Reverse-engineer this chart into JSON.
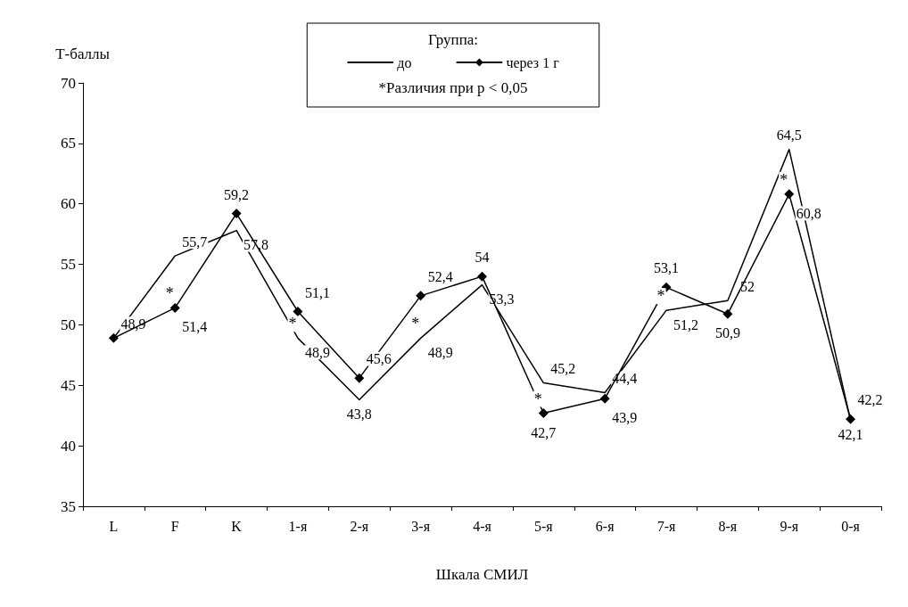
{
  "chart_data": {
    "type": "line",
    "xlabel": "Шкала СМИЛ",
    "ylabel": "Т-баллы",
    "legend_title": "Группа:",
    "legend": "top",
    "grid": false,
    "categories": [
      "L",
      "F",
      "K",
      "1-я",
      "2-я",
      "3-я",
      "4-я",
      "5-я",
      "6-я",
      "7-я",
      "8-я",
      "9-я",
      "0-я"
    ],
    "ylim": [
      35,
      70
    ],
    "yticks": [
      35,
      40,
      45,
      50,
      55,
      60,
      65,
      70
    ],
    "series": [
      {
        "name": "до",
        "color": "#000000",
        "marker": "none",
        "values": [
          48.9,
          55.7,
          57.8,
          48.9,
          43.8,
          48.9,
          53.3,
          45.2,
          44.4,
          51.2,
          52,
          64.5,
          42.1
        ],
        "value_labels": [
          "48,9",
          "55,7",
          "57,8",
          "48,9",
          "43,8",
          "48,9",
          "53,3",
          "45,2",
          "44,4",
          "51,2",
          "52",
          "64,5",
          "42,1"
        ]
      },
      {
        "name": "через 1 г",
        "color": "#000000",
        "marker": "diamond",
        "values": [
          48.9,
          51.4,
          59.2,
          51.1,
          45.6,
          52.4,
          54,
          42.7,
          43.9,
          53.1,
          50.9,
          60.8,
          42.2
        ],
        "value_labels": [
          null,
          "51,4",
          "59,2",
          "51,1",
          "45,6",
          "52,4",
          "54",
          "42,7",
          "43,9",
          "53,1",
          "50,9",
          "60,8",
          "42,2"
        ]
      }
    ],
    "annotations": [
      "*Различия при p < 0,05",
      {
        "text": "*",
        "x": "F",
        "y": 51.4
      },
      {
        "text": "*",
        "x": "1-я",
        "y": 48.9
      },
      {
        "text": "*",
        "x": "3-я",
        "y": 48.9
      },
      {
        "text": "*",
        "x": "5-я",
        "y": 42.7
      },
      {
        "text": "*",
        "x": "7-я",
        "y": 51.2
      },
      {
        "text": "*",
        "x": "9-я",
        "y": 60.8
      }
    ]
  }
}
